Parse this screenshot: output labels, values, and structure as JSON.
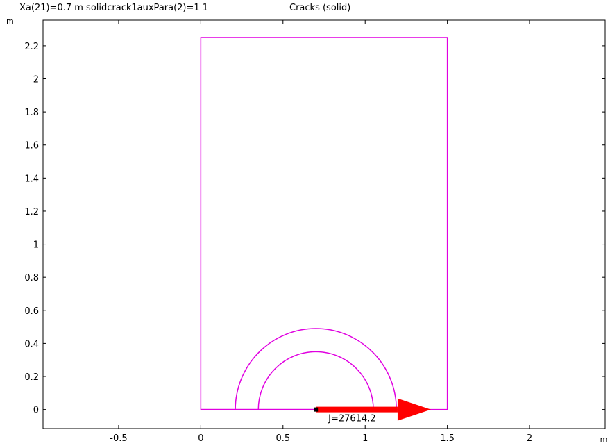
{
  "header": {
    "parameter_label": "Xa(21)=0.7 m solidcrack1auxPara(2)=1 1",
    "title": "Cracks (solid)"
  },
  "chart_data": {
    "type": "line",
    "xlabel": "m",
    "ylabel": "m",
    "xlim": [
      -0.96,
      2.46
    ],
    "ylim": [
      -0.115,
      2.355
    ],
    "x_ticks": [
      -0.5,
      0,
      0.5,
      1,
      1.5,
      2
    ],
    "x_tick_labels": [
      "-0.5",
      "0",
      "0.5",
      "1",
      "1.5",
      "2"
    ],
    "y_ticks": [
      0,
      0.2,
      0.4,
      0.6,
      0.8,
      1,
      1.2,
      1.4,
      1.6,
      1.8,
      2,
      2.2
    ],
    "y_tick_labels": [
      "0",
      "0.2",
      "0.4",
      "0.6",
      "0.8",
      "1",
      "1.2",
      "1.4",
      "1.6",
      "1.8",
      "2",
      "2.2"
    ],
    "grid": false,
    "geometry_color": "#e000e0",
    "rectangle": {
      "x0": 0,
      "y0": 0,
      "x1": 1.5,
      "y1": 2.25
    },
    "arcs": [
      {
        "cx": 0.7,
        "cy": 0,
        "r": 0.49
      },
      {
        "cx": 0.7,
        "cy": 0,
        "r": 0.35
      }
    ],
    "crack_segment": {
      "x0": 0,
      "x1": 0.7,
      "y": 0
    },
    "crack_tip": {
      "x": 0.7,
      "y": 0
    },
    "arrow": {
      "x0": 0.7,
      "y0": 0,
      "x1": 1.4,
      "y1": 0,
      "color": "#ff0000"
    },
    "annotation": {
      "text": "J=27614.2",
      "x": 0.7,
      "y": 0
    }
  }
}
